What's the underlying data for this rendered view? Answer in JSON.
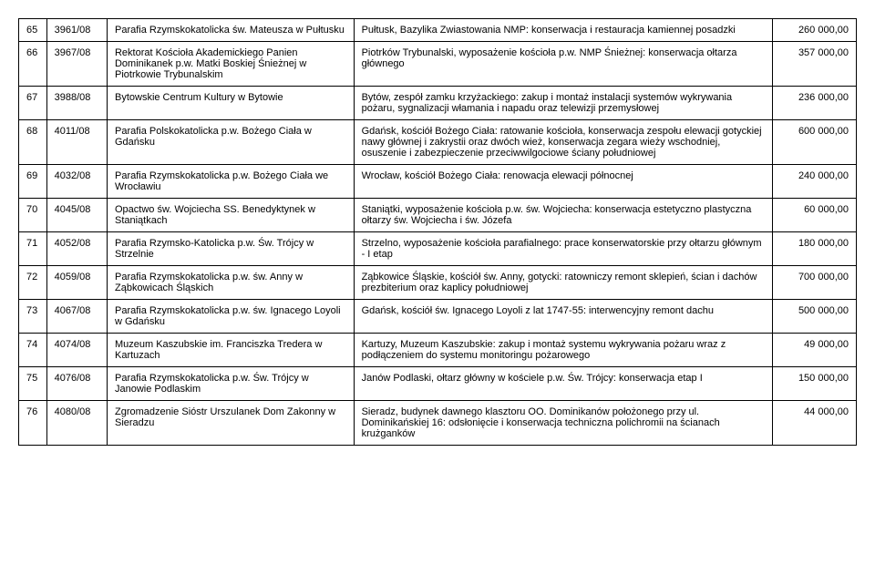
{
  "rows": [
    {
      "n": "65",
      "id": "3961/08",
      "entity": "Parafia Rzymskokatolicka św. Mateusza w Pułtusku",
      "desc": "Pułtusk, Bazylika Zwiastowania NMP: konserwacja i restauracja kamiennej posadzki",
      "amount": "260 000,00"
    },
    {
      "n": "66",
      "id": "3967/08",
      "entity": "Rektorat Kościoła Akademickiego Panien Dominikanek p.w. Matki Boskiej Śnieżnej w Piotrkowie Trybunalskim",
      "desc": "Piotrków Trybunalski, wyposażenie kościoła p.w. NMP Śnieżnej: konserwacja ołtarza głównego",
      "amount": "357 000,00"
    },
    {
      "n": "67",
      "id": "3988/08",
      "entity": "Bytowskie Centrum Kultury w Bytowie",
      "desc": "Bytów, zespół zamku krzyżackiego: zakup i montaż instalacji systemów wykrywania pożaru, sygnalizacji włamania i napadu oraz telewizji przemysłowej",
      "amount": "236 000,00"
    },
    {
      "n": "68",
      "id": "4011/08",
      "entity": "Parafia Polskokatolicka p.w. Bożego Ciała w Gdańsku",
      "desc": "Gdańsk, kościół Bożego Ciała: ratowanie kościoła, konserwacja zespołu elewacji gotyckiej nawy głównej i zakrystii oraz dwóch wież, konserwacja zegara wieży wschodniej, osuszenie i zabezpieczenie przeciwwilgociowe ściany południowej",
      "amount": "600 000,00"
    },
    {
      "n": "69",
      "id": "4032/08",
      "entity": "Parafia Rzymskokatolicka p.w. Bożego Ciała we Wrocławiu",
      "desc": "Wrocław, kościół Bożego Ciała: renowacja elewacji północnej",
      "amount": "240 000,00"
    },
    {
      "n": "70",
      "id": "4045/08",
      "entity": "Opactwo św. Wojciecha SS. Benedyktynek w Staniątkach",
      "desc": "Staniątki, wyposażenie kościoła p.w. św. Wojciecha: konserwacja estetyczno plastyczna ołtarzy św. Wojciecha i św. Józefa",
      "amount": "60 000,00"
    },
    {
      "n": "71",
      "id": "4052/08",
      "entity": "Parafia Rzymsko-Katolicka p.w. Św. Trójcy w Strzelnie",
      "desc": "Strzelno, wyposażenie kościoła parafialnego: prace konserwatorskie przy ołtarzu głównym - I etap",
      "amount": "180 000,00"
    },
    {
      "n": "72",
      "id": "4059/08",
      "entity": "Parafia Rzymskokatolicka p.w. św. Anny w Ząbkowicach Śląskich",
      "desc": "Ząbkowice Śląskie, kościół św. Anny, gotycki: ratowniczy remont sklepień, ścian i dachów prezbiterium oraz kaplicy południowej",
      "amount": "700 000,00"
    },
    {
      "n": "73",
      "id": "4067/08",
      "entity": "Parafia Rzymskokatolicka p.w. św. Ignacego Loyoli w Gdańsku",
      "desc": "Gdańsk, kościół św. Ignacego Loyoli z lat 1747-55: interwencyjny remont dachu",
      "amount": "500 000,00"
    },
    {
      "n": "74",
      "id": "4074/08",
      "entity": "Muzeum Kaszubskie im. Franciszka Tredera w Kartuzach",
      "desc": "Kartuzy, Muzeum Kaszubskie: zakup i montaż systemu wykrywania pożaru wraz z podłączeniem do systemu monitoringu pożarowego",
      "amount": "49 000,00"
    },
    {
      "n": "75",
      "id": "4076/08",
      "entity": "Parafia Rzymskokatolicka p.w. Św. Trójcy w Janowie Podlaskim",
      "desc": "Janów Podlaski, ołtarz główny w kościele p.w. Św. Trójcy: konserwacja etap I",
      "amount": "150 000,00"
    },
    {
      "n": "76",
      "id": "4080/08",
      "entity": "Zgromadzenie Sióstr Urszulanek Dom Zakonny w Sieradzu",
      "desc": "Sieradz, budynek dawnego klasztoru OO. Dominikanów położonego przy ul. Dominikańskiej 16: odsłonięcie i konserwacja techniczna polichromii na ścianach krużganków",
      "amount": "44 000,00"
    }
  ]
}
